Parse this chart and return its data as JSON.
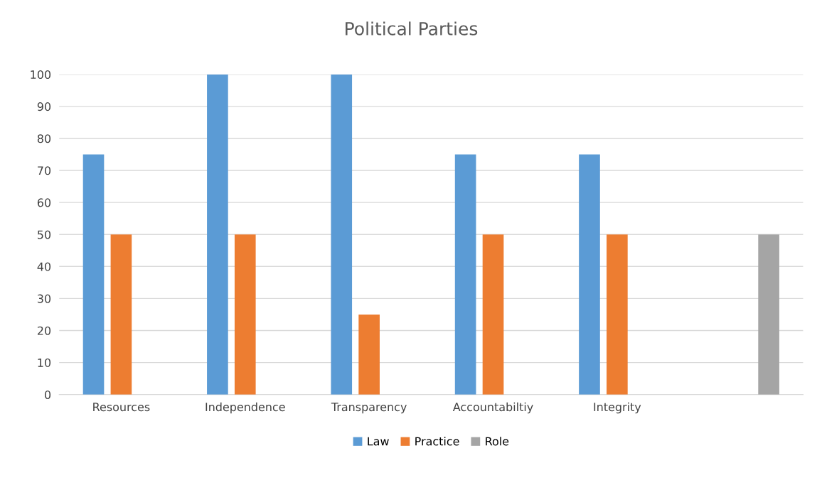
{
  "chart_data": {
    "type": "bar",
    "title": "Political Parties",
    "categories": [
      "Resources",
      "Independence",
      "Transparency",
      "Accountabiltiy",
      "Integrity",
      null
    ],
    "series": [
      {
        "name": "Law",
        "color": "#5b9bd5",
        "values": [
          75,
          100,
          100,
          75,
          75,
          null
        ]
      },
      {
        "name": "Practice",
        "color": "#ed7d31",
        "values": [
          50,
          50,
          25,
          50,
          50,
          null
        ]
      },
      {
        "name": "Role",
        "color": "#a5a5a5",
        "values": [
          null,
          null,
          null,
          null,
          null,
          50
        ]
      }
    ],
    "ylim": [
      0,
      100
    ],
    "yticks": [
      0,
      10,
      20,
      30,
      40,
      50,
      60,
      70,
      80,
      90,
      100
    ],
    "grid": "y",
    "legend": "bottom"
  }
}
